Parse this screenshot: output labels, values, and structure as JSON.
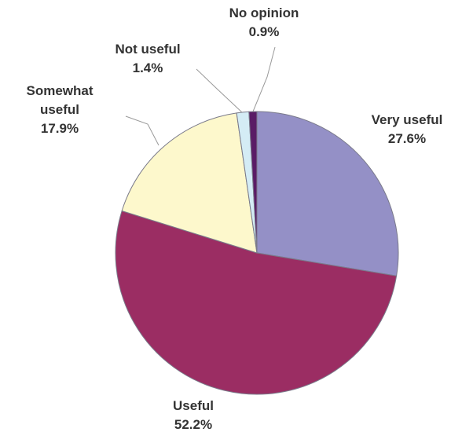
{
  "chart_data": {
    "type": "pie",
    "title": "",
    "slices": [
      {
        "label": "Very useful",
        "value": 27.6,
        "value_label": "27.6%",
        "color": "#9490c6"
      },
      {
        "label": "Useful",
        "value": 52.2,
        "value_label": "52.2%",
        "color": "#9b2d63"
      },
      {
        "label": "Somewhat useful",
        "value": 17.9,
        "value_label": "17.9%",
        "color": "#fdf8cc"
      },
      {
        "label": "Not useful",
        "value": 1.4,
        "value_label": "1.4%",
        "color": "#d4ecf5"
      },
      {
        "label": "No opinion",
        "value": 0.9,
        "value_label": "0.9%",
        "color": "#5a1c66"
      }
    ],
    "start_angle": "12 o'clock",
    "direction": "clockwise",
    "legend": "none"
  }
}
